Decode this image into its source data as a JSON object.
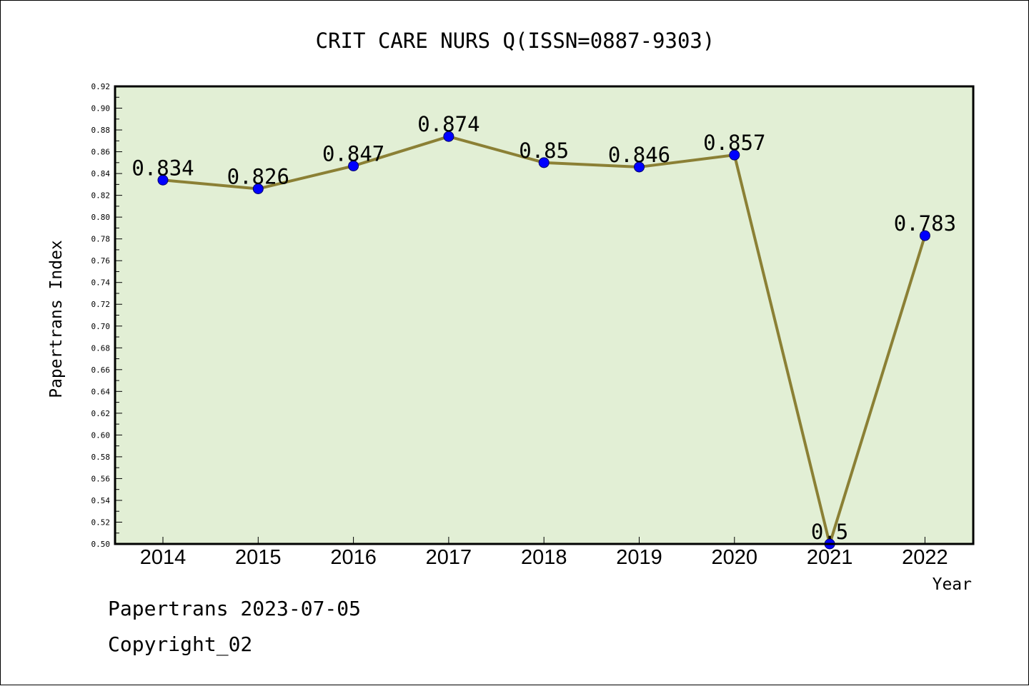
{
  "chart_data": {
    "type": "line",
    "title": "CRIT CARE NURS Q(ISSN=0887-9303)",
    "xlabel": "Year",
    "ylabel": "Papertrans Index",
    "categories": [
      "2014",
      "2015",
      "2016",
      "2017",
      "2018",
      "2019",
      "2020",
      "2021",
      "2022"
    ],
    "series": [
      {
        "values": [
          0.834,
          0.826,
          0.847,
          0.874,
          0.85,
          0.846,
          0.857,
          0.5,
          0.783
        ],
        "labels": [
          "0.834",
          "0.826",
          "0.847",
          "0.874",
          "0.85",
          "0.846",
          "0.857",
          "0.5",
          "0.783"
        ]
      }
    ],
    "ylim": [
      0.5,
      0.92
    ],
    "ytick_labels": [
      "0.50",
      "0.52",
      "0.54",
      "0.56",
      "0.58",
      "0.60",
      "0.62",
      "0.64",
      "0.66",
      "0.68",
      "0.70",
      "0.72",
      "0.74",
      "0.76",
      "0.78",
      "0.80",
      "0.82",
      "0.84",
      "0.86",
      "0.88",
      "0.90",
      "0.92"
    ],
    "grid": false,
    "colors": {
      "plot_background": "#e2efd5",
      "line": "#8b8035",
      "marker": "#0000ff"
    }
  },
  "footer": {
    "source": "Papertrans 2023-07-05",
    "copyright": "Copyright_02"
  }
}
